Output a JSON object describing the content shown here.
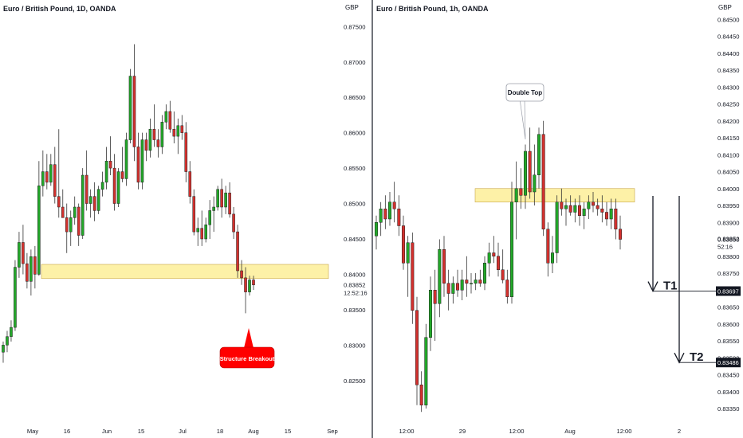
{
  "colors": {
    "bull": "#22a829",
    "bear": "#d3312e",
    "zone_fill": "#fdf0a0",
    "zone_stroke": "#c9a64a",
    "badge": "#ff0000",
    "divider": "#131722"
  },
  "chart_data": [
    {
      "type": "candlestick",
      "title": "Euro / British Pound, 1D, OANDA",
      "currency_label": "GBP",
      "ylim": [
        0.8225,
        0.8765
      ],
      "y_ticks": [
        "0.87500",
        "0.87000",
        "0.86500",
        "0.86000",
        "0.85500",
        "0.85000",
        "0.84500",
        "0.84000",
        "0.83500",
        "0.83000",
        "0.82500"
      ],
      "x_ticks": [
        "May",
        "16",
        "Jun",
        "15",
        "Jul",
        "18",
        "Aug",
        "15",
        "Sep"
      ],
      "current_price": "0.83852",
      "countdown": "12:52:16",
      "zone": [
        0.8394,
        0.8414
      ],
      "annotation": "Structure Breakout",
      "candles": [
        {
          "o": 0.829,
          "h": 0.8305,
          "l": 0.8275,
          "c": 0.83
        },
        {
          "o": 0.83,
          "h": 0.832,
          "l": 0.829,
          "c": 0.8312
        },
        {
          "o": 0.8312,
          "h": 0.8335,
          "l": 0.8305,
          "c": 0.8325
        },
        {
          "o": 0.8325,
          "h": 0.842,
          "l": 0.832,
          "c": 0.841
        },
        {
          "o": 0.841,
          "h": 0.846,
          "l": 0.8395,
          "c": 0.8445
        },
        {
          "o": 0.8445,
          "h": 0.847,
          "l": 0.84,
          "c": 0.8415
        },
        {
          "o": 0.8415,
          "h": 0.843,
          "l": 0.838,
          "c": 0.839
        },
        {
          "o": 0.839,
          "h": 0.8435,
          "l": 0.837,
          "c": 0.8425
        },
        {
          "o": 0.8425,
          "h": 0.844,
          "l": 0.838,
          "c": 0.84
        },
        {
          "o": 0.84,
          "h": 0.856,
          "l": 0.8398,
          "c": 0.8525
        },
        {
          "o": 0.8525,
          "h": 0.8575,
          "l": 0.851,
          "c": 0.8545
        },
        {
          "o": 0.8545,
          "h": 0.857,
          "l": 0.852,
          "c": 0.853
        },
        {
          "o": 0.853,
          "h": 0.857,
          "l": 0.8525,
          "c": 0.8555
        },
        {
          "o": 0.8555,
          "h": 0.858,
          "l": 0.85,
          "c": 0.851
        },
        {
          "o": 0.851,
          "h": 0.8605,
          "l": 0.848,
          "c": 0.8495
        },
        {
          "o": 0.8495,
          "h": 0.852,
          "l": 0.848,
          "c": 0.848
        },
        {
          "o": 0.848,
          "h": 0.85,
          "l": 0.843,
          "c": 0.846
        },
        {
          "o": 0.846,
          "h": 0.849,
          "l": 0.844,
          "c": 0.848
        },
        {
          "o": 0.848,
          "h": 0.851,
          "l": 0.847,
          "c": 0.8495
        },
        {
          "o": 0.8495,
          "h": 0.85,
          "l": 0.844,
          "c": 0.8455
        },
        {
          "o": 0.8455,
          "h": 0.855,
          "l": 0.845,
          "c": 0.854
        },
        {
          "o": 0.854,
          "h": 0.8575,
          "l": 0.849,
          "c": 0.85
        },
        {
          "o": 0.85,
          "h": 0.852,
          "l": 0.848,
          "c": 0.851
        },
        {
          "o": 0.851,
          "h": 0.853,
          "l": 0.8475,
          "c": 0.849
        },
        {
          "o": 0.849,
          "h": 0.8525,
          "l": 0.8485,
          "c": 0.852
        },
        {
          "o": 0.852,
          "h": 0.8545,
          "l": 0.851,
          "c": 0.853
        },
        {
          "o": 0.853,
          "h": 0.858,
          "l": 0.852,
          "c": 0.856
        },
        {
          "o": 0.856,
          "h": 0.8595,
          "l": 0.854,
          "c": 0.855
        },
        {
          "o": 0.855,
          "h": 0.857,
          "l": 0.849,
          "c": 0.85
        },
        {
          "o": 0.85,
          "h": 0.855,
          "l": 0.8495,
          "c": 0.8545
        },
        {
          "o": 0.8545,
          "h": 0.858,
          "l": 0.853,
          "c": 0.8535
        },
        {
          "o": 0.8535,
          "h": 0.86,
          "l": 0.8525,
          "c": 0.859
        },
        {
          "o": 0.859,
          "h": 0.869,
          "l": 0.8585,
          "c": 0.868
        },
        {
          "o": 0.868,
          "h": 0.8725,
          "l": 0.856,
          "c": 0.858
        },
        {
          "o": 0.858,
          "h": 0.86,
          "l": 0.852,
          "c": 0.853
        },
        {
          "o": 0.853,
          "h": 0.86,
          "l": 0.852,
          "c": 0.859
        },
        {
          "o": 0.859,
          "h": 0.86,
          "l": 0.856,
          "c": 0.8575
        },
        {
          "o": 0.8575,
          "h": 0.862,
          "l": 0.8565,
          "c": 0.8605
        },
        {
          "o": 0.8605,
          "h": 0.864,
          "l": 0.858,
          "c": 0.859
        },
        {
          "o": 0.859,
          "h": 0.8605,
          "l": 0.8565,
          "c": 0.858
        },
        {
          "o": 0.858,
          "h": 0.8625,
          "l": 0.857,
          "c": 0.8615
        },
        {
          "o": 0.8615,
          "h": 0.864,
          "l": 0.8605,
          "c": 0.863
        },
        {
          "o": 0.863,
          "h": 0.8645,
          "l": 0.86,
          "c": 0.8605
        },
        {
          "o": 0.8605,
          "h": 0.863,
          "l": 0.8585,
          "c": 0.8595
        },
        {
          "o": 0.8595,
          "h": 0.862,
          "l": 0.857,
          "c": 0.861
        },
        {
          "o": 0.861,
          "h": 0.8625,
          "l": 0.859,
          "c": 0.86
        },
        {
          "o": 0.86,
          "h": 0.8615,
          "l": 0.853,
          "c": 0.8545
        },
        {
          "o": 0.8545,
          "h": 0.856,
          "l": 0.85,
          "c": 0.851
        },
        {
          "o": 0.851,
          "h": 0.852,
          "l": 0.8455,
          "c": 0.846
        },
        {
          "o": 0.846,
          "h": 0.848,
          "l": 0.844,
          "c": 0.8465
        },
        {
          "o": 0.8465,
          "h": 0.849,
          "l": 0.844,
          "c": 0.845
        },
        {
          "o": 0.845,
          "h": 0.848,
          "l": 0.8445,
          "c": 0.847
        },
        {
          "o": 0.847,
          "h": 0.8505,
          "l": 0.845,
          "c": 0.849
        },
        {
          "o": 0.849,
          "h": 0.851,
          "l": 0.846,
          "c": 0.8495
        },
        {
          "o": 0.8495,
          "h": 0.8525,
          "l": 0.849,
          "c": 0.852
        },
        {
          "o": 0.852,
          "h": 0.8535,
          "l": 0.848,
          "c": 0.8495
        },
        {
          "o": 0.8495,
          "h": 0.8525,
          "l": 0.8485,
          "c": 0.8515
        },
        {
          "o": 0.8515,
          "h": 0.853,
          "l": 0.848,
          "c": 0.8485
        },
        {
          "o": 0.8485,
          "h": 0.8495,
          "l": 0.845,
          "c": 0.846
        },
        {
          "o": 0.846,
          "h": 0.847,
          "l": 0.8395,
          "c": 0.8405
        },
        {
          "o": 0.8405,
          "h": 0.842,
          "l": 0.8385,
          "c": 0.8395
        },
        {
          "o": 0.8395,
          "h": 0.841,
          "l": 0.8345,
          "c": 0.8375
        },
        {
          "o": 0.8375,
          "h": 0.8398,
          "l": 0.837,
          "c": 0.8392
        },
        {
          "o": 0.8392,
          "h": 0.8398,
          "l": 0.8378,
          "c": 0.8385
        }
      ]
    },
    {
      "type": "candlestick",
      "title": "Euro / British Pound, 1h, OANDA",
      "currency_label": "GBP",
      "ylim": [
        0.8331,
        0.8451
      ],
      "y_ticks": [
        "0.84500",
        "0.84450",
        "0.84400",
        "0.84350",
        "0.84300",
        "0.84250",
        "0.84200",
        "0.84150",
        "0.84100",
        "0.84050",
        "0.84000",
        "0.83950",
        "0.83900",
        "0.83850",
        "0.83800",
        "0.83750",
        "0.83700",
        "0.83650",
        "0.83600",
        "0.83550",
        "0.83500",
        "0.83450",
        "0.83400",
        "0.83350"
      ],
      "x_ticks": [
        "12:00",
        "29",
        "12:00",
        "Aug",
        "12:00",
        "2"
      ],
      "current_price": "0.83852",
      "countdown": "52:16",
      "zone": [
        0.8396,
        0.84
      ],
      "annotation": "Double Top",
      "targets": [
        {
          "label": "T1",
          "price": "0.83697",
          "value": 0.83697
        },
        {
          "label": "T2",
          "price": "0.83486",
          "value": 0.83486
        }
      ],
      "candles": [
        {
          "o": 0.8386,
          "h": 0.8392,
          "l": 0.8382,
          "c": 0.839
        },
        {
          "o": 0.839,
          "h": 0.8396,
          "l": 0.8386,
          "c": 0.8394
        },
        {
          "o": 0.8394,
          "h": 0.8398,
          "l": 0.8388,
          "c": 0.8391
        },
        {
          "o": 0.8391,
          "h": 0.8399,
          "l": 0.8389,
          "c": 0.8396
        },
        {
          "o": 0.8396,
          "h": 0.8402,
          "l": 0.839,
          "c": 0.8394
        },
        {
          "o": 0.8394,
          "h": 0.8398,
          "l": 0.8386,
          "c": 0.8389
        },
        {
          "o": 0.8389,
          "h": 0.8392,
          "l": 0.8376,
          "c": 0.8378
        },
        {
          "o": 0.8378,
          "h": 0.8386,
          "l": 0.8368,
          "c": 0.8384
        },
        {
          "o": 0.8384,
          "h": 0.8387,
          "l": 0.836,
          "c": 0.8364
        },
        {
          "o": 0.8364,
          "h": 0.8368,
          "l": 0.8336,
          "c": 0.8342
        },
        {
          "o": 0.8342,
          "h": 0.8346,
          "l": 0.8334,
          "c": 0.8336
        },
        {
          "o": 0.8336,
          "h": 0.836,
          "l": 0.8335,
          "c": 0.8356
        },
        {
          "o": 0.8356,
          "h": 0.8374,
          "l": 0.8352,
          "c": 0.837
        },
        {
          "o": 0.837,
          "h": 0.8376,
          "l": 0.8355,
          "c": 0.8366
        },
        {
          "o": 0.8366,
          "h": 0.8385,
          "l": 0.8362,
          "c": 0.8382
        },
        {
          "o": 0.8382,
          "h": 0.8386,
          "l": 0.8368,
          "c": 0.8372
        },
        {
          "o": 0.8372,
          "h": 0.8376,
          "l": 0.8364,
          "c": 0.8369
        },
        {
          "o": 0.8369,
          "h": 0.8374,
          "l": 0.8366,
          "c": 0.8372
        },
        {
          "o": 0.8372,
          "h": 0.8376,
          "l": 0.8368,
          "c": 0.837
        },
        {
          "o": 0.837,
          "h": 0.8376,
          "l": 0.8367,
          "c": 0.8373
        },
        {
          "o": 0.8373,
          "h": 0.838,
          "l": 0.8368,
          "c": 0.8372
        },
        {
          "o": 0.8372,
          "h": 0.8375,
          "l": 0.8369,
          "c": 0.8372
        },
        {
          "o": 0.8372,
          "h": 0.8375,
          "l": 0.837,
          "c": 0.8373
        },
        {
          "o": 0.8373,
          "h": 0.8376,
          "l": 0.8371,
          "c": 0.8372
        },
        {
          "o": 0.8372,
          "h": 0.838,
          "l": 0.837,
          "c": 0.8378
        },
        {
          "o": 0.8378,
          "h": 0.8384,
          "l": 0.8374,
          "c": 0.8381
        },
        {
          "o": 0.8381,
          "h": 0.8386,
          "l": 0.8378,
          "c": 0.838
        },
        {
          "o": 0.838,
          "h": 0.8384,
          "l": 0.8374,
          "c": 0.8376
        },
        {
          "o": 0.8376,
          "h": 0.8382,
          "l": 0.8372,
          "c": 0.8373
        },
        {
          "o": 0.8373,
          "h": 0.8376,
          "l": 0.8366,
          "c": 0.8368
        },
        {
          "o": 0.8368,
          "h": 0.8402,
          "l": 0.8366,
          "c": 0.8396
        },
        {
          "o": 0.8396,
          "h": 0.8408,
          "l": 0.8385,
          "c": 0.84
        },
        {
          "o": 0.84,
          "h": 0.8406,
          "l": 0.8394,
          "c": 0.8398
        },
        {
          "o": 0.8398,
          "h": 0.8413,
          "l": 0.8394,
          "c": 0.8411
        },
        {
          "o": 0.8411,
          "h": 0.8418,
          "l": 0.8397,
          "c": 0.8399
        },
        {
          "o": 0.8399,
          "h": 0.8413,
          "l": 0.8395,
          "c": 0.8404
        },
        {
          "o": 0.8404,
          "h": 0.8418,
          "l": 0.84,
          "c": 0.8416
        },
        {
          "o": 0.8416,
          "h": 0.842,
          "l": 0.8386,
          "c": 0.8388
        },
        {
          "o": 0.8388,
          "h": 0.839,
          "l": 0.8374,
          "c": 0.8378
        },
        {
          "o": 0.8378,
          "h": 0.8386,
          "l": 0.8375,
          "c": 0.8381
        },
        {
          "o": 0.8381,
          "h": 0.8398,
          "l": 0.8378,
          "c": 0.8396
        },
        {
          "o": 0.8396,
          "h": 0.84,
          "l": 0.8392,
          "c": 0.8394
        },
        {
          "o": 0.8394,
          "h": 0.8397,
          "l": 0.8389,
          "c": 0.8395
        },
        {
          "o": 0.8395,
          "h": 0.8398,
          "l": 0.8392,
          "c": 0.8393
        },
        {
          "o": 0.8393,
          "h": 0.8397,
          "l": 0.839,
          "c": 0.8395
        },
        {
          "o": 0.8395,
          "h": 0.8398,
          "l": 0.8389,
          "c": 0.8392
        },
        {
          "o": 0.8392,
          "h": 0.8396,
          "l": 0.8388,
          "c": 0.8394
        },
        {
          "o": 0.8394,
          "h": 0.8398,
          "l": 0.8391,
          "c": 0.8396
        },
        {
          "o": 0.8396,
          "h": 0.8399,
          "l": 0.8393,
          "c": 0.8395
        },
        {
          "o": 0.8395,
          "h": 0.8397,
          "l": 0.8392,
          "c": 0.8394
        },
        {
          "o": 0.8394,
          "h": 0.8398,
          "l": 0.839,
          "c": 0.8393
        },
        {
          "o": 0.8393,
          "h": 0.8396,
          "l": 0.8389,
          "c": 0.8391
        },
        {
          "o": 0.8391,
          "h": 0.8397,
          "l": 0.8388,
          "c": 0.8394
        },
        {
          "o": 0.8394,
          "h": 0.8397,
          "l": 0.8385,
          "c": 0.8388
        },
        {
          "o": 0.8388,
          "h": 0.8392,
          "l": 0.8382,
          "c": 0.8385
        }
      ]
    }
  ]
}
